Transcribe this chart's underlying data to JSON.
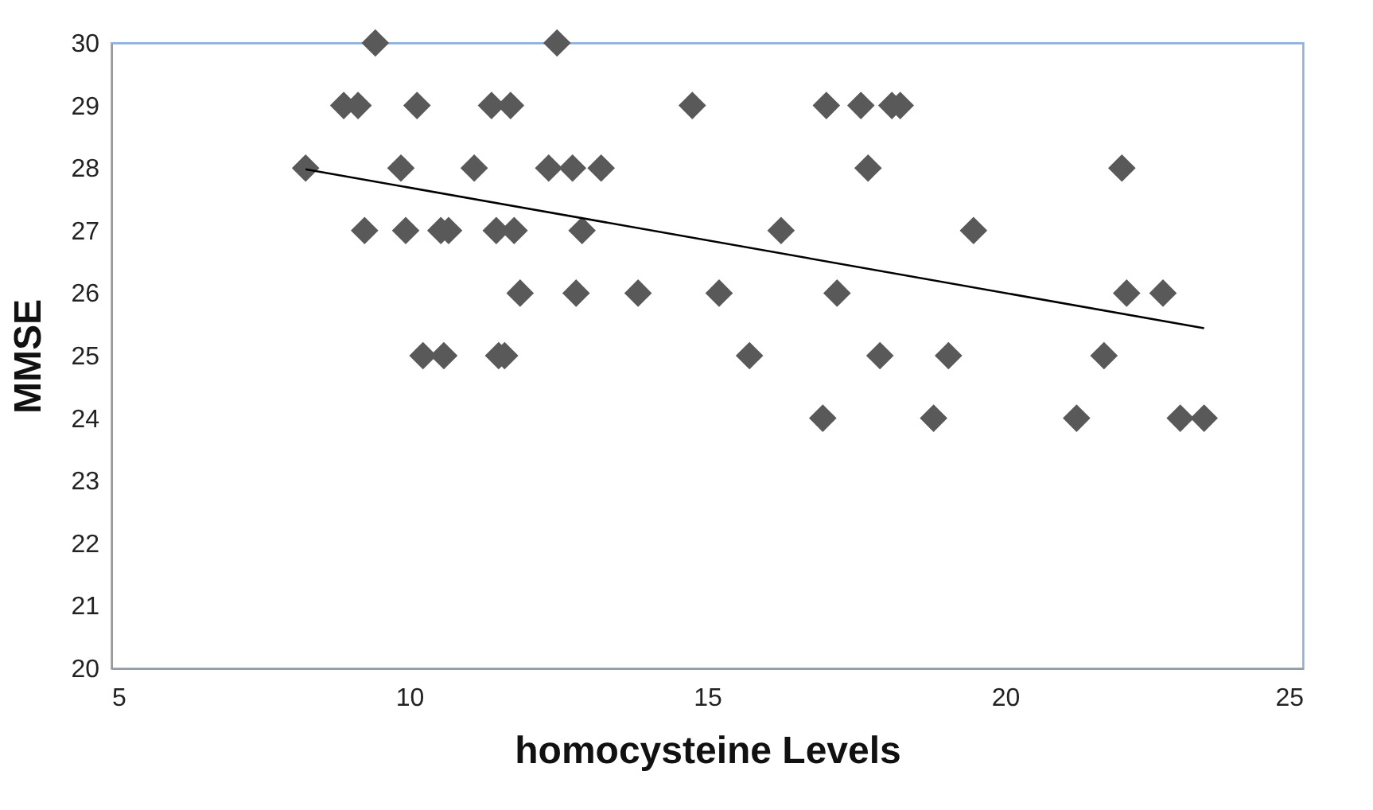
{
  "chart_data": {
    "type": "scatter",
    "xlabel": "homocysteine Levels",
    "ylabel": "MMSE",
    "xlim": [
      5,
      25
    ],
    "ylim": [
      20,
      30
    ],
    "xticks": [
      5,
      10,
      15,
      20,
      25
    ],
    "yticks": [
      20,
      21,
      22,
      23,
      24,
      25,
      26,
      27,
      28,
      29,
      30
    ],
    "grid": false,
    "marker": "diamond",
    "series": [
      {
        "color": "#595959",
        "x": [
          9.43,
          12.48,
          8.9,
          9.14,
          10.13,
          11.38,
          11.7,
          14.75,
          17.0,
          17.58,
          18.1,
          18.24,
          8.26,
          9.86,
          11.09,
          12.34,
          12.74,
          13.22,
          17.7,
          21.96,
          9.25,
          9.94,
          10.53,
          10.66,
          11.46,
          11.76,
          12.9,
          16.24,
          19.47,
          11.86,
          12.8,
          13.84,
          15.2,
          17.18,
          22.04,
          22.65,
          10.23,
          10.58,
          11.5,
          11.6,
          15.71,
          17.9,
          19.05,
          21.66,
          16.94,
          18.8,
          21.2,
          22.94,
          23.34
        ],
        "values": [
          30,
          30,
          29,
          29,
          29,
          29,
          29,
          29,
          29,
          29,
          29,
          29,
          28,
          28,
          28,
          28,
          28,
          28,
          28,
          28,
          27,
          27,
          27,
          27,
          27,
          27,
          27,
          27,
          27,
          26,
          26,
          26,
          26,
          26,
          26,
          26,
          25,
          25,
          25,
          25,
          25,
          25,
          25,
          25,
          24,
          24,
          24,
          24,
          24
        ]
      },
      {
        "type": "line",
        "marker": "none",
        "color": "#000000",
        "x": [
          8.26,
          23.34
        ],
        "values": [
          27.98,
          25.44
        ]
      }
    ]
  }
}
